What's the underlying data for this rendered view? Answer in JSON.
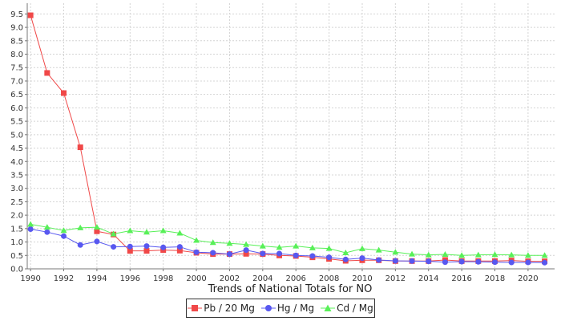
{
  "chart_data": {
    "type": "line",
    "title": "",
    "xlabel": "Trends of National Totals for NO",
    "ylabel": "",
    "xlim": [
      1989.8,
      2021.6
    ],
    "ylim": [
      0,
      9.9
    ],
    "grid": true,
    "legend_position": "bottom",
    "x": [
      1990,
      1991,
      1992,
      1993,
      1994,
      1995,
      1996,
      1997,
      1998,
      1999,
      2000,
      2001,
      2002,
      2003,
      2004,
      2005,
      2006,
      2007,
      2008,
      2009,
      2010,
      2011,
      2012,
      2013,
      2014,
      2015,
      2016,
      2017,
      2018,
      2019,
      2020,
      2021
    ],
    "x_ticks": [
      "1990",
      "1992",
      "1994",
      "1996",
      "1998",
      "2000",
      "2002",
      "2004",
      "2006",
      "2008",
      "2010",
      "2012",
      "2014",
      "2016",
      "2018",
      "2020"
    ],
    "y_ticks": [
      "0.0",
      "0.5",
      "1.0",
      "1.5",
      "2.0",
      "2.5",
      "3.0",
      "3.5",
      "4.0",
      "4.5",
      "5.0",
      "5.5",
      "6.0",
      "6.5",
      "7.0",
      "7.5",
      "8.0",
      "8.5",
      "9.0",
      "9.5"
    ],
    "series": [
      {
        "name": "Pb / 20 Mg",
        "color": "#f04848",
        "marker": "square",
        "values": [
          9.45,
          7.3,
          6.55,
          4.53,
          1.4,
          1.28,
          0.67,
          0.67,
          0.7,
          0.68,
          0.6,
          0.55,
          0.55,
          0.56,
          0.55,
          0.5,
          0.48,
          0.43,
          0.37,
          0.3,
          0.32,
          0.32,
          0.29,
          0.29,
          0.29,
          0.33,
          0.29,
          0.29,
          0.29,
          0.31,
          0.28,
          0.28
        ]
      },
      {
        "name": "Hg / Mg",
        "color": "#5858f0",
        "marker": "circle",
        "values": [
          1.48,
          1.37,
          1.22,
          0.89,
          1.02,
          0.82,
          0.83,
          0.85,
          0.8,
          0.82,
          0.62,
          0.6,
          0.55,
          0.7,
          0.57,
          0.57,
          0.5,
          0.48,
          0.43,
          0.35,
          0.4,
          0.33,
          0.3,
          0.29,
          0.28,
          0.25,
          0.27,
          0.26,
          0.25,
          0.24,
          0.24,
          0.23
        ]
      },
      {
        "name": "Cd / Mg",
        "color": "#58f058",
        "marker": "triangle",
        "values": [
          1.66,
          1.55,
          1.43,
          1.53,
          1.55,
          1.3,
          1.42,
          1.37,
          1.42,
          1.33,
          1.06,
          0.98,
          0.95,
          0.91,
          0.85,
          0.8,
          0.85,
          0.78,
          0.76,
          0.6,
          0.75,
          0.7,
          0.62,
          0.55,
          0.52,
          0.54,
          0.5,
          0.52,
          0.53,
          0.52,
          0.5,
          0.5
        ]
      }
    ]
  }
}
